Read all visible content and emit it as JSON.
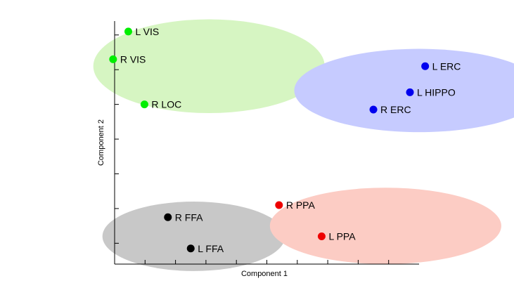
{
  "chart_data": {
    "type": "scatter",
    "title": "",
    "xlabel": "Component 1",
    "ylabel": "Component 2",
    "xlim": [
      0,
      10
    ],
    "ylim": [
      0,
      7
    ],
    "x_ticks": [
      0,
      1,
      2,
      3,
      4,
      5,
      6,
      7,
      8,
      9
    ],
    "y_ticks": [
      0.6,
      1.6,
      2.6,
      3.6,
      4.6,
      5.6,
      6.6
    ],
    "grid": false,
    "legend": "none",
    "clusters": [
      {
        "color": "#d6f5c2",
        "center": [
          3.1,
          5.7
        ],
        "radius": [
          3.8,
          1.35
        ]
      },
      {
        "color": "#c6cbff",
        "center": [
          10.0,
          5.0
        ],
        "radius": [
          4.1,
          1.2
        ]
      },
      {
        "color": "#c8c8c8",
        "center": [
          2.6,
          0.8
        ],
        "radius": [
          3.0,
          1.0
        ]
      },
      {
        "color": "#fcccc4",
        "center": [
          8.9,
          1.1
        ],
        "radius": [
          3.8,
          1.1
        ]
      }
    ],
    "series": [
      {
        "color": "#00ee00",
        "points": [
          {
            "label": "L VIS",
            "x": 0.45,
            "y": 6.7
          },
          {
            "label": "R VIS",
            "x": -0.05,
            "y": 5.9
          },
          {
            "label": "R LOC",
            "x": 0.98,
            "y": 4.6
          }
        ]
      },
      {
        "color": "#0000ee",
        "points": [
          {
            "label": "L ERC",
            "x": 10.2,
            "y": 5.7
          },
          {
            "label": "L HIPPO",
            "x": 9.7,
            "y": 4.95
          },
          {
            "label": "R ERC",
            "x": 8.5,
            "y": 4.45
          }
        ]
      },
      {
        "color": "#000000",
        "points": [
          {
            "label": "R FFA",
            "x": 1.75,
            "y": 1.35
          },
          {
            "label": "L FFA",
            "x": 2.5,
            "y": 0.45
          }
        ]
      },
      {
        "color": "#ee0000",
        "points": [
          {
            "label": "R PPA",
            "x": 5.4,
            "y": 1.7
          },
          {
            "label": "L PPA",
            "x": 6.8,
            "y": 0.8
          }
        ]
      }
    ]
  }
}
